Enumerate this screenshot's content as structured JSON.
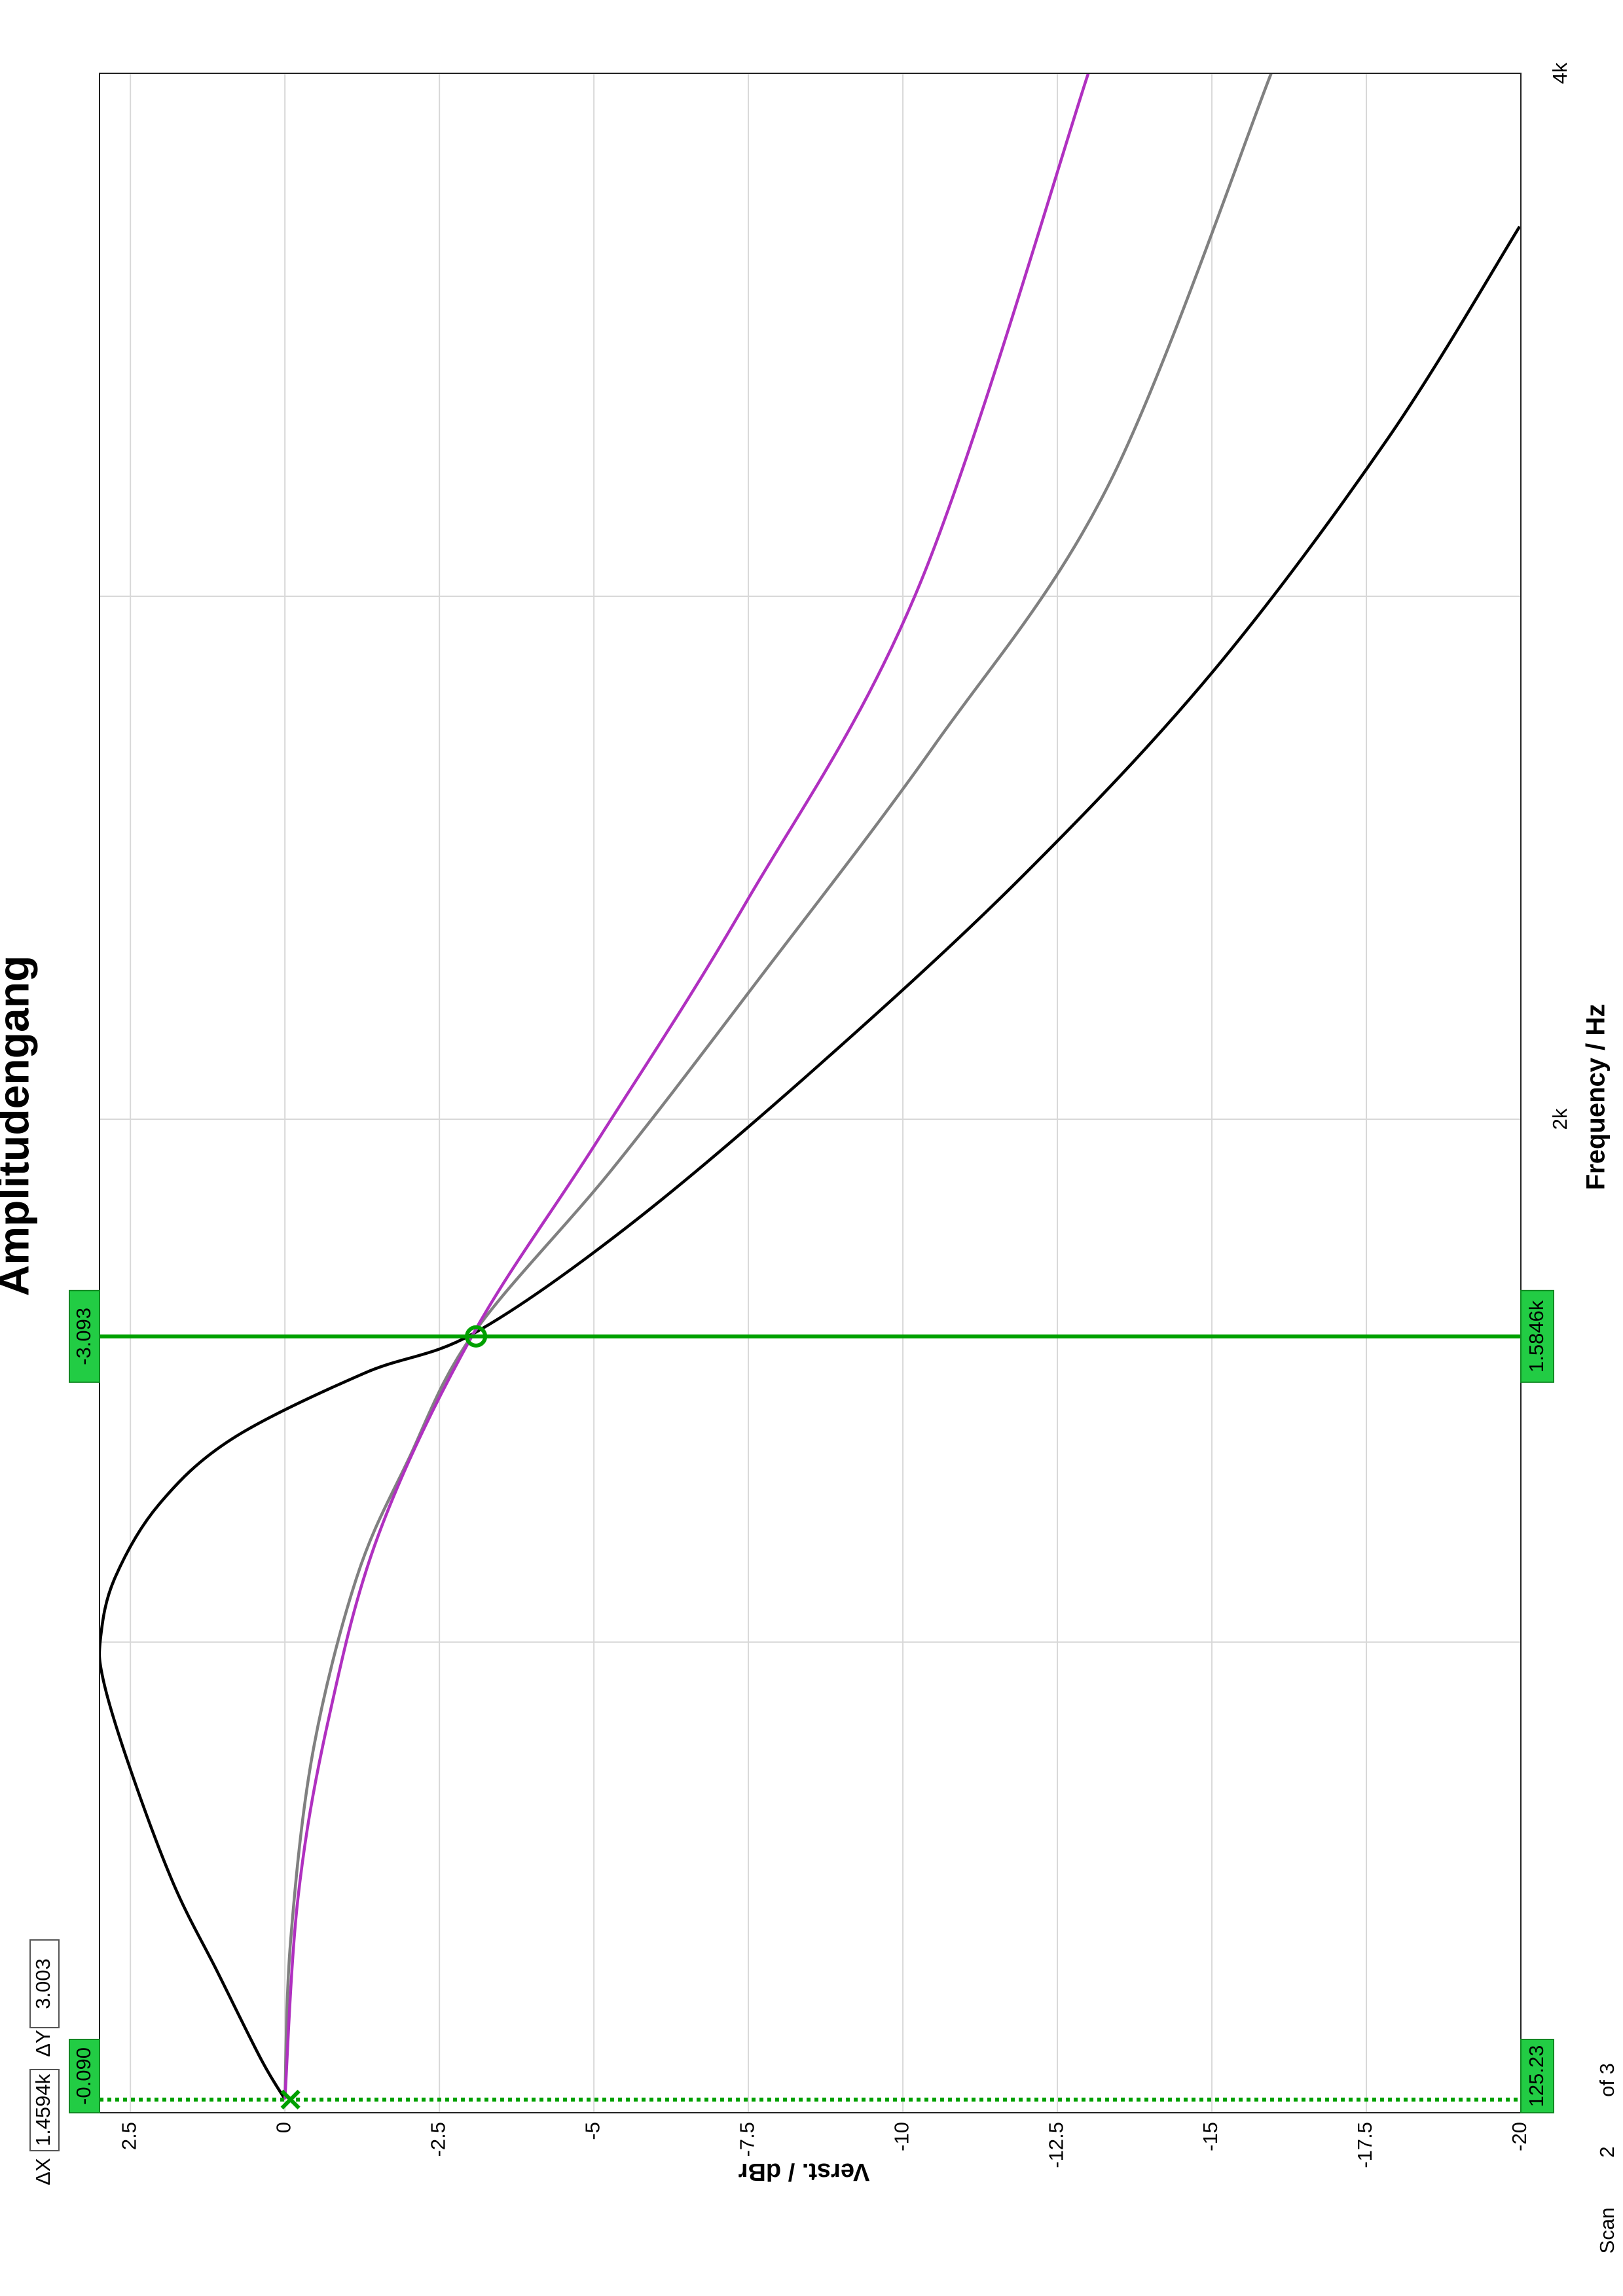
{
  "chart_data": {
    "type": "line",
    "title": "Amplitudengang",
    "x_label": "Frequency / Hz",
    "y_label": "Verst. / dBr",
    "xlim": [
      100,
      4000
    ],
    "xticks": [
      {
        "value": 2000,
        "label": "2k"
      },
      {
        "value": 4000,
        "label": "4k"
      }
    ],
    "xminor": [
      1000,
      3000
    ],
    "ylim": [
      -20,
      3
    ],
    "yticks": [
      2.5,
      0,
      -2.5,
      -5,
      -7.5,
      -10,
      -12.5,
      -15,
      -17.5,
      -20
    ],
    "grid": true,
    "series": [
      {
        "color": "#000000",
        "x": [
          126,
          201,
          369,
          537,
          760,
          928,
          1011,
          1123,
          1263,
          1389,
          1514,
          1590,
          1794,
          2101,
          2464,
          2855,
          3302,
          3707
        ],
        "values": [
          0,
          0.38,
          1.09,
          1.8,
          2.51,
          2.94,
          2.98,
          2.75,
          2.04,
          0.85,
          -1.28,
          -3.05,
          -5.54,
          -8.62,
          -11.93,
          -15.01,
          -17.85,
          -19.98
        ]
      },
      {
        "color": "#808080",
        "x": [
          126,
          425,
          788,
          1123,
          1347,
          1590,
          1905,
          2268,
          2715,
          3218,
          4000
        ],
        "values": [
          0,
          -0.09,
          -0.45,
          -1.16,
          -1.99,
          -3.05,
          -5.3,
          -7.67,
          -10.51,
          -13.35,
          -15.96
        ]
      },
      {
        "color": "#b030c0",
        "x": [
          126,
          509,
          844,
          1207,
          1590,
          1961,
          2408,
          3022,
          4000
        ],
        "values": [
          0,
          -0.21,
          -0.69,
          -1.52,
          -3.05,
          -5.07,
          -7.43,
          -10.27,
          -13.0
        ]
      }
    ],
    "cursors": [
      {
        "x": 125.23,
        "x_label": "125.23",
        "y": -0.09,
        "y_label": "-0.090",
        "style": "dotted",
        "marker": "x",
        "color": "#00a000"
      },
      {
        "x": 1584.6,
        "x_label": "1.5846k",
        "y": -3.093,
        "y_label": "-3.093",
        "style": "solid",
        "marker": "o",
        "color": "#00a000"
      }
    ]
  },
  "cursor_info": {
    "dx_name": "ΔX",
    "dx": "1.4594k",
    "dy_name": "ΔY",
    "dy": "3.003"
  },
  "scan": {
    "label": "Scan",
    "value": "2",
    "total": "of 3"
  }
}
